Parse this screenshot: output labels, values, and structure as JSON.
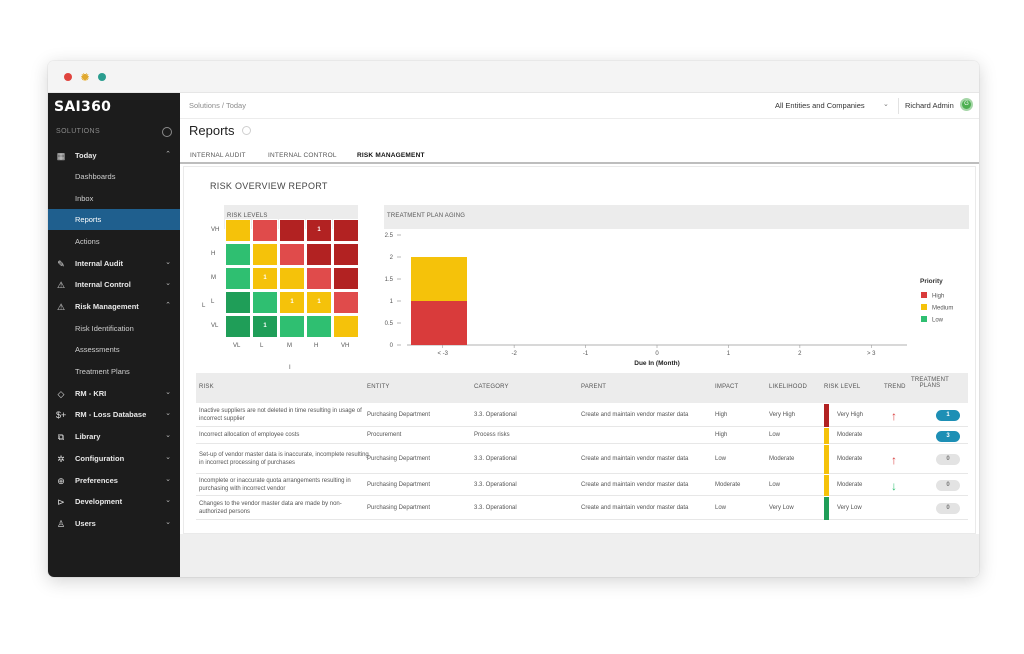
{
  "window": {
    "controls": [
      "#e0443e",
      "#e0a82e",
      "#2a9d8f"
    ]
  },
  "sidebar": {
    "logo": "SAI360",
    "solutions_label": "SOLUTIONS",
    "items": [
      {
        "label": "Today",
        "icon": "calendar-icon",
        "chev": "⌃"
      },
      {
        "label": "Dashboards"
      },
      {
        "label": "Inbox"
      },
      {
        "label": "Reports"
      },
      {
        "label": "Actions"
      },
      {
        "label": "Internal Audit",
        "icon": "pencil-icon",
        "chev": "⌄"
      },
      {
        "label": "Internal Control",
        "icon": "warning-icon",
        "chev": "⌄"
      },
      {
        "label": "Risk Management",
        "icon": "warning-icon",
        "chev": "⌃"
      },
      {
        "label": "Risk Identification"
      },
      {
        "label": "Assessments"
      },
      {
        "label": "Treatment Plans"
      },
      {
        "label": "RM - KRI",
        "icon": "diamond-icon",
        "chev": "⌄"
      },
      {
        "label": "RM - Loss Database",
        "icon": "dollar-plus-icon",
        "chev": "⌄"
      },
      {
        "label": "Library",
        "icon": "library-icon",
        "chev": "⌄"
      },
      {
        "label": "Configuration",
        "icon": "gear-icon",
        "chev": "⌄"
      },
      {
        "label": "Preferences",
        "icon": "globe-icon",
        "chev": "⌄"
      },
      {
        "label": "Development",
        "icon": "development-icon",
        "chev": "⌄"
      },
      {
        "label": "Users",
        "icon": "user-icon",
        "chev": "⌄"
      }
    ]
  },
  "topbar": {
    "breadcrumb": "Solutions  /  Today",
    "entities": "All Entities and Companies",
    "user": "Richard Admin",
    "user_badge": "G"
  },
  "page": {
    "title": "Reports",
    "tabs": [
      "INTERNAL AUDIT",
      "INTERNAL CONTROL",
      "RISK MANAGEMENT"
    ],
    "report_title": "RISK OVERVIEW REPORT"
  },
  "heatmap": {
    "title": "RISK LEVELS",
    "y_label": "L",
    "x_label": "I",
    "rows": [
      "VH",
      "H",
      "M",
      "L",
      "VL"
    ],
    "cols": [
      "VL",
      "L",
      "M",
      "H",
      "VH"
    ],
    "colors": [
      [
        "#f5c20a",
        "#e04b4b",
        "#b22222",
        "#b22222",
        "#b22222"
      ],
      [
        "#2fbf71",
        "#f5c20a",
        "#e04b4b",
        "#b22222",
        "#b22222"
      ],
      [
        "#2fbf71",
        "#f5c20a",
        "#f5c20a",
        "#e04b4b",
        "#b22222"
      ],
      [
        "#1f9e58",
        "#2fbf71",
        "#f5c20a",
        "#f5c20a",
        "#e04b4b"
      ],
      [
        "#1f9e58",
        "#1f9e58",
        "#2fbf71",
        "#2fbf71",
        "#f5c20a"
      ]
    ],
    "counts": [
      [
        "",
        "",
        "",
        "1",
        ""
      ],
      [
        "",
        "",
        "",
        "",
        ""
      ],
      [
        "",
        "1",
        "",
        "",
        ""
      ],
      [
        "",
        "",
        "1",
        "1",
        ""
      ],
      [
        "",
        "1",
        "",
        "",
        ""
      ]
    ]
  },
  "aging_title": "TREATMENT PLAN AGING",
  "chart_data": {
    "type": "bar",
    "title": "TREATMENT PLAN AGING",
    "xlabel": "Due In (Month)",
    "ylabel": "",
    "categories": [
      "< -3",
      "-2",
      "-1",
      "0",
      "1",
      "2",
      "> 3"
    ],
    "y_ticks": [
      "0",
      "0.5",
      "1",
      "1.5",
      "2",
      "2.5"
    ],
    "ylim": [
      0,
      2.5
    ],
    "stacked": true,
    "legend_title": "Priority",
    "legend_position": "right",
    "series": [
      {
        "name": "High",
        "color": "#d93b3b",
        "values": [
          1,
          0,
          0,
          0,
          0,
          0,
          0
        ]
      },
      {
        "name": "Medium",
        "color": "#f5c20a",
        "values": [
          1,
          0,
          0,
          0,
          0,
          0,
          0
        ]
      },
      {
        "name": "Low",
        "color": "#2fbf71",
        "values": [
          0,
          0,
          0,
          0,
          0,
          0,
          0
        ]
      }
    ]
  },
  "table": {
    "headers": [
      "RISK",
      "ENTITY",
      "CATEGORY",
      "PARENT",
      "IMPACT",
      "LIKELIHOOD",
      "RISK LEVEL",
      "TREND",
      "TREATMENT PLANS"
    ],
    "rows": [
      {
        "risk": "Inactive suppliers are not deleted in time resulting in usage of incorrect supplier",
        "entity": "Purchasing Department",
        "category": "3.3. Operational",
        "parent": "Create and maintain vendor master data",
        "impact": "High",
        "likelihood": "Very High",
        "level": "Very High",
        "level_color": "#b22222",
        "trend": "↑",
        "trend_color": "#d93b3b",
        "plans": "1",
        "plans_active": true
      },
      {
        "risk": "Incorrect allocation of employee costs",
        "entity": "Procurement",
        "category": "Process risks",
        "parent": "",
        "impact": "High",
        "likelihood": "Low",
        "level": "Moderate",
        "level_color": "#f5c20a",
        "trend": "",
        "trend_color": "#d93b3b",
        "plans": "3",
        "plans_active": true
      },
      {
        "risk": "Set-up of vendor master data is inaccurate, incomplete resulting in incorrect processing of purchases",
        "entity": "Purchasing Department",
        "category": "3.3. Operational",
        "parent": "Create and maintain vendor master data",
        "impact": "Low",
        "likelihood": "Moderate",
        "level": "Moderate",
        "level_color": "#f5c20a",
        "trend": "↑",
        "trend_color": "#d93b3b",
        "plans": "0",
        "plans_active": false
      },
      {
        "risk": "Incomplete or inaccurate quota arrangements resulting in purchasing with incorrect vendor",
        "entity": "Purchasing Department",
        "category": "3.3. Operational",
        "parent": "Create and maintain vendor master data",
        "impact": "Moderate",
        "likelihood": "Low",
        "level": "Moderate",
        "level_color": "#f5c20a",
        "trend": "↓",
        "trend_color": "#2fbf71",
        "plans": "0",
        "plans_active": false
      },
      {
        "risk": "Changes to the vendor master data are made by non-authorized persons",
        "entity": "Purchasing Department",
        "category": "3.3. Operational",
        "parent": "Create and maintain vendor master data",
        "impact": "Low",
        "likelihood": "Very Low",
        "level": "Very Low",
        "level_color": "#1f9e58",
        "trend": "",
        "trend_color": "#2fbf71",
        "plans": "0",
        "plans_active": false
      }
    ]
  }
}
